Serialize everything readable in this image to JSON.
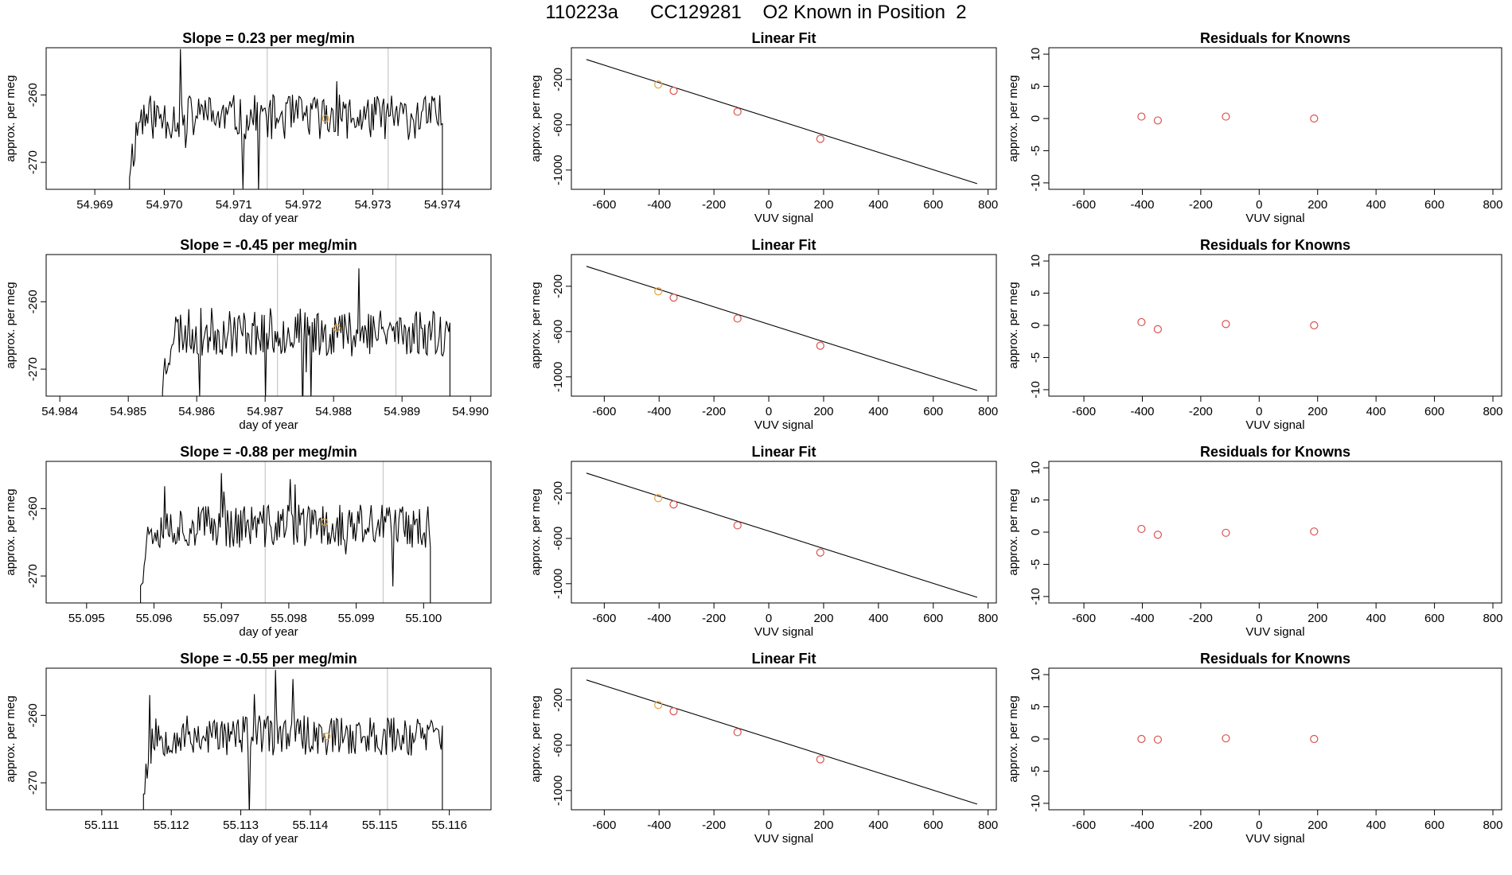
{
  "header": {
    "title": "110223a      CC129281    O2 Known in Position  2"
  },
  "colors": {
    "line": "#000000",
    "vline": "#c8c8c8",
    "point": "#d9534f",
    "highlight": "#e8a33c"
  },
  "chart_data": [
    {
      "type": "line",
      "title": "Slope =  0.23  per meg/min",
      "xlabel": "day of year",
      "ylabel": "approx. per meg",
      "xlim": [
        54.9683,
        54.9747
      ],
      "ylim": [
        -274,
        -253
      ],
      "xticks": [
        54.969,
        54.97,
        54.971,
        54.972,
        54.973,
        54.974
      ],
      "xtick_labels": [
        "54.969",
        "54.970",
        "54.971",
        "54.972",
        "54.973",
        "54.974"
      ],
      "yticks": [
        -260,
        -270
      ],
      "ytick_labels": [
        "-260",
        "-270"
      ],
      "window": [
        54.9695,
        54.974
      ],
      "vlines": [
        54.97148,
        54.97322
      ],
      "mean_point": {
        "x": 54.97232,
        "y": -263.5
      },
      "seed": 11,
      "level": -263.3,
      "spread": 3.4,
      "spikes": 6
    },
    {
      "type": "scatter",
      "title": "Linear Fit",
      "xlabel": "VUV signal",
      "ylabel": "approx. per meg",
      "xlim": [
        -720,
        830
      ],
      "ylim": [
        -1170,
        80
      ],
      "xticks": [
        -600,
        -400,
        -200,
        0,
        200,
        400,
        600,
        800
      ],
      "xtick_labels": [
        "-600",
        "-400",
        "-200",
        "0",
        "200",
        "400",
        "600",
        "800"
      ],
      "yticks": [
        -200,
        -600,
        -1000
      ],
      "ytick_labels": [
        "-200",
        "-600",
        "-1000"
      ],
      "fit": {
        "x": [
          -665,
          760
        ],
        "y": [
          -24,
          -1120
        ]
      },
      "points": [
        {
          "x": -403,
          "y": -245
        },
        {
          "x": -347,
          "y": -300
        },
        {
          "x": -114,
          "y": -485
        },
        {
          "x": 188,
          "y": -725
        }
      ],
      "highlight_index": 0
    },
    {
      "type": "scatter",
      "title": "Residuals for Knowns",
      "xlabel": "VUV signal",
      "ylabel": "approx. per meg",
      "xlim": [
        -720,
        830
      ],
      "ylim": [
        -11,
        11
      ],
      "xticks": [
        -600,
        -400,
        -200,
        0,
        200,
        400,
        600,
        800
      ],
      "xtick_labels": [
        "-600",
        "-400",
        "-200",
        "0",
        "200",
        "400",
        "600",
        "800"
      ],
      "yticks": [
        10,
        5,
        0,
        -5,
        -10
      ],
      "ytick_labels": [
        "10",
        "5",
        "0",
        "-5",
        "-10"
      ],
      "points": [
        {
          "x": -403,
          "y": 0.3
        },
        {
          "x": -347,
          "y": -0.3
        },
        {
          "x": -114,
          "y": 0.3
        },
        {
          "x": 188,
          "y": 0.0
        }
      ]
    },
    {
      "type": "line",
      "title": "Slope =  -0.45  per meg/min",
      "xlabel": "day of year",
      "ylabel": "approx. per meg",
      "xlim": [
        54.9838,
        54.9903
      ],
      "ylim": [
        -274,
        -253
      ],
      "xticks": [
        54.984,
        54.985,
        54.986,
        54.987,
        54.988,
        54.989,
        54.99
      ],
      "xtick_labels": [
        "54.984",
        "54.985",
        "54.986",
        "54.987",
        "54.988",
        "54.989",
        "54.990"
      ],
      "yticks": [
        -260,
        -270
      ],
      "ytick_labels": [
        "-260",
        "-270"
      ],
      "window": [
        54.9855,
        54.9897
      ],
      "vlines": [
        54.98718,
        54.98891
      ],
      "mean_point": {
        "x": 54.98805,
        "y": -263.9
      },
      "seed": 23,
      "level": -264.5,
      "spread": 3.6,
      "spikes": 6
    },
    {
      "type": "scatter",
      "title": "Linear Fit",
      "xlabel": "VUV signal",
      "ylabel": "approx. per meg",
      "xlim": [
        -720,
        830
      ],
      "ylim": [
        -1170,
        80
      ],
      "xticks": [
        -600,
        -400,
        -200,
        0,
        200,
        400,
        600,
        800
      ],
      "xtick_labels": [
        "-600",
        "-400",
        "-200",
        "0",
        "200",
        "400",
        "600",
        "800"
      ],
      "yticks": [
        -200,
        -600,
        -1000
      ],
      "ytick_labels": [
        "-200",
        "-600",
        "-1000"
      ],
      "fit": {
        "x": [
          -665,
          760
        ],
        "y": [
          -24,
          -1120
        ]
      },
      "points": [
        {
          "x": -403,
          "y": -245
        },
        {
          "x": -347,
          "y": -300
        },
        {
          "x": -114,
          "y": -485
        },
        {
          "x": 188,
          "y": -725
        }
      ],
      "highlight_index": 0
    },
    {
      "type": "scatter",
      "title": "Residuals for Knowns",
      "xlabel": "VUV signal",
      "ylabel": "approx. per meg",
      "xlim": [
        -720,
        830
      ],
      "ylim": [
        -11,
        11
      ],
      "xticks": [
        -600,
        -400,
        -200,
        0,
        200,
        400,
        600,
        800
      ],
      "xtick_labels": [
        "-600",
        "-400",
        "-200",
        "0",
        "200",
        "400",
        "600",
        "800"
      ],
      "yticks": [
        10,
        5,
        0,
        -5,
        -10
      ],
      "ytick_labels": [
        "10",
        "5",
        "0",
        "-5",
        "-10"
      ],
      "points": [
        {
          "x": -403,
          "y": 0.5
        },
        {
          "x": -347,
          "y": -0.6
        },
        {
          "x": -114,
          "y": 0.2
        },
        {
          "x": 188,
          "y": 0.0
        }
      ]
    },
    {
      "type": "line",
      "title": "Slope =  -0.88  per meg/min",
      "xlabel": "day of year",
      "ylabel": "approx. per meg",
      "xlim": [
        55.0944,
        55.101
      ],
      "ylim": [
        -274,
        -253
      ],
      "xticks": [
        55.095,
        55.096,
        55.097,
        55.098,
        55.099,
        55.1
      ],
      "xtick_labels": [
        "55.095",
        "55.096",
        "55.097",
        "55.098",
        "55.099",
        "55.100"
      ],
      "yticks": [
        -260,
        -270
      ],
      "ytick_labels": [
        "-260",
        "-270"
      ],
      "window": [
        55.0958,
        55.1001
      ],
      "vlines": [
        55.09765,
        55.0994
      ],
      "mean_point": {
        "x": 55.09853,
        "y": -262.0
      },
      "seed": 37,
      "level": -262.6,
      "spread": 3.3,
      "spikes": 7
    },
    {
      "type": "scatter",
      "title": "Linear Fit",
      "xlabel": "VUV signal",
      "ylabel": "approx. per meg",
      "xlim": [
        -720,
        830
      ],
      "ylim": [
        -1170,
        80
      ],
      "xticks": [
        -600,
        -400,
        -200,
        0,
        200,
        400,
        600,
        800
      ],
      "xtick_labels": [
        "-600",
        "-400",
        "-200",
        "0",
        "200",
        "400",
        "600",
        "800"
      ],
      "yticks": [
        -200,
        -600,
        -1000
      ],
      "ytick_labels": [
        "-200",
        "-600",
        "-1000"
      ],
      "fit": {
        "x": [
          -665,
          760
        ],
        "y": [
          -24,
          -1120
        ]
      },
      "points": [
        {
          "x": -403,
          "y": -245
        },
        {
          "x": -347,
          "y": -300
        },
        {
          "x": -114,
          "y": -485
        },
        {
          "x": 188,
          "y": -725
        }
      ],
      "highlight_index": 0
    },
    {
      "type": "scatter",
      "title": "Residuals for Knowns",
      "xlabel": "VUV signal",
      "ylabel": "approx. per meg",
      "xlim": [
        -720,
        830
      ],
      "ylim": [
        -11,
        11
      ],
      "xticks": [
        -600,
        -400,
        -200,
        0,
        200,
        400,
        600,
        800
      ],
      "xtick_labels": [
        "-600",
        "-400",
        "-200",
        "0",
        "200",
        "400",
        "600",
        "800"
      ],
      "yticks": [
        10,
        5,
        0,
        -5,
        -10
      ],
      "ytick_labels": [
        "10",
        "5",
        "0",
        "-5",
        "-10"
      ],
      "points": [
        {
          "x": -403,
          "y": 0.5
        },
        {
          "x": -347,
          "y": -0.4
        },
        {
          "x": -114,
          "y": -0.1
        },
        {
          "x": 188,
          "y": 0.1
        }
      ]
    },
    {
      "type": "line",
      "title": "Slope =  -0.55  per meg/min",
      "xlabel": "day of year",
      "ylabel": "approx. per meg",
      "xlim": [
        55.1102,
        55.1166
      ],
      "ylim": [
        -274,
        -253
      ],
      "xticks": [
        55.111,
        55.112,
        55.113,
        55.114,
        55.115,
        55.116
      ],
      "xtick_labels": [
        "55.111",
        "55.112",
        "55.113",
        "55.114",
        "55.115",
        "55.116"
      ],
      "yticks": [
        -260,
        -270
      ],
      "ytick_labels": [
        "-260",
        "-270"
      ],
      "window": [
        55.1116,
        55.1159
      ],
      "vlines": [
        55.11336,
        55.11511
      ],
      "mean_point": {
        "x": 55.11424,
        "y": -263.1
      },
      "seed": 53,
      "level": -263.0,
      "spread": 3.0,
      "spikes": 5
    },
    {
      "type": "scatter",
      "title": "Linear Fit",
      "xlabel": "VUV signal",
      "ylabel": "approx. per meg",
      "xlim": [
        -720,
        830
      ],
      "ylim": [
        -1170,
        80
      ],
      "xticks": [
        -600,
        -400,
        -200,
        0,
        200,
        400,
        600,
        800
      ],
      "xtick_labels": [
        "-600",
        "-400",
        "-200",
        "0",
        "200",
        "400",
        "600",
        "800"
      ],
      "yticks": [
        -200,
        -600,
        -1000
      ],
      "ytick_labels": [
        "-200",
        "-600",
        "-1000"
      ],
      "fit": {
        "x": [
          -665,
          760
        ],
        "y": [
          -24,
          -1120
        ]
      },
      "points": [
        {
          "x": -403,
          "y": -245
        },
        {
          "x": -347,
          "y": -300
        },
        {
          "x": -114,
          "y": -485
        },
        {
          "x": 188,
          "y": -725
        }
      ],
      "highlight_index": 0
    },
    {
      "type": "scatter",
      "title": "Residuals for Knowns",
      "xlabel": "VUV signal",
      "ylabel": "approx. per meg",
      "xlim": [
        -720,
        830
      ],
      "ylim": [
        -11,
        11
      ],
      "xticks": [
        -600,
        -400,
        -200,
        0,
        200,
        400,
        600,
        800
      ],
      "xtick_labels": [
        "-600",
        "-400",
        "-200",
        "0",
        "200",
        "400",
        "600",
        "800"
      ],
      "yticks": [
        10,
        5,
        0,
        -5,
        -10
      ],
      "ytick_labels": [
        "10",
        "5",
        "0",
        "-5",
        "-10"
      ],
      "points": [
        {
          "x": -403,
          "y": 0.0
        },
        {
          "x": -347,
          "y": -0.1
        },
        {
          "x": -114,
          "y": 0.1
        },
        {
          "x": 188,
          "y": 0.0
        }
      ]
    }
  ]
}
